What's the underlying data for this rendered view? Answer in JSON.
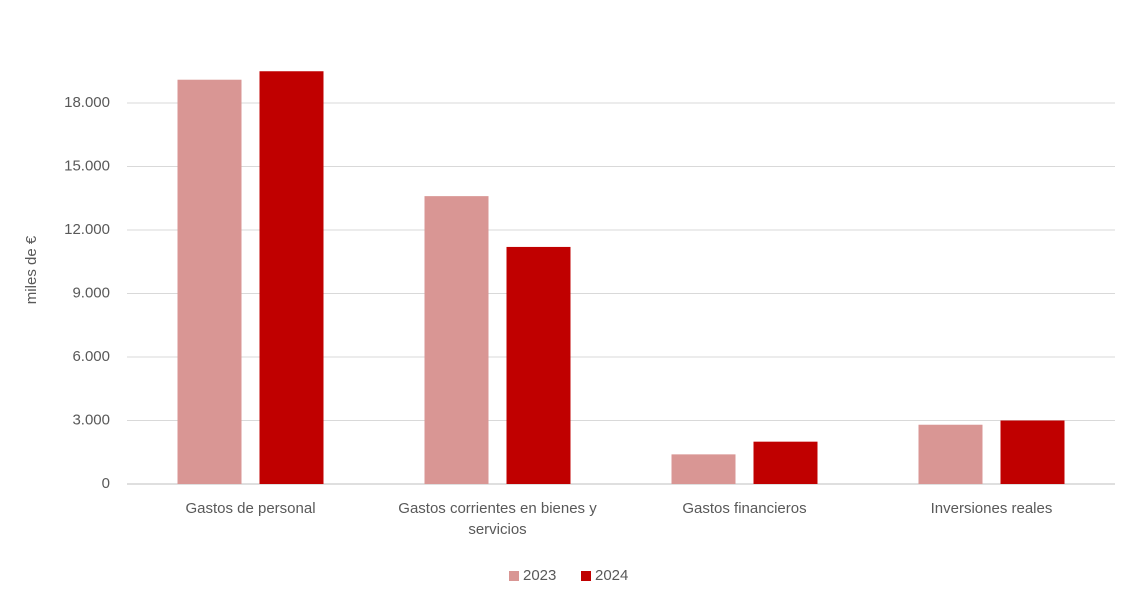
{
  "chart_data": {
    "type": "bar",
    "y_label": "miles de €",
    "categories": [
      "Gastos de personal",
      "Gastos corrientes en bienes y servicios",
      "Gastos financieros",
      "Inversiones reales"
    ],
    "series": [
      {
        "name": "2023",
        "color": "#d99694",
        "values": [
          19100,
          13600,
          1400,
          2800
        ]
      },
      {
        "name": "2024",
        "color": "#c00000",
        "values": [
          19500,
          11200,
          2000,
          3000
        ]
      }
    ],
    "ylim": [
      0,
      21000
    ],
    "yticks": [
      0,
      {
        "value": 3000,
        "label": "3.000"
      },
      {
        "value": 6000,
        "label": "6.000"
      },
      {
        "value": 9000,
        "label": "9.000"
      },
      {
        "value": 12000,
        "label": "12.000"
      },
      {
        "value": 15000,
        "label": "15.000"
      },
      {
        "value": 18000,
        "label": "18.000"
      }
    ],
    "grid": true,
    "legend": "bottom"
  }
}
